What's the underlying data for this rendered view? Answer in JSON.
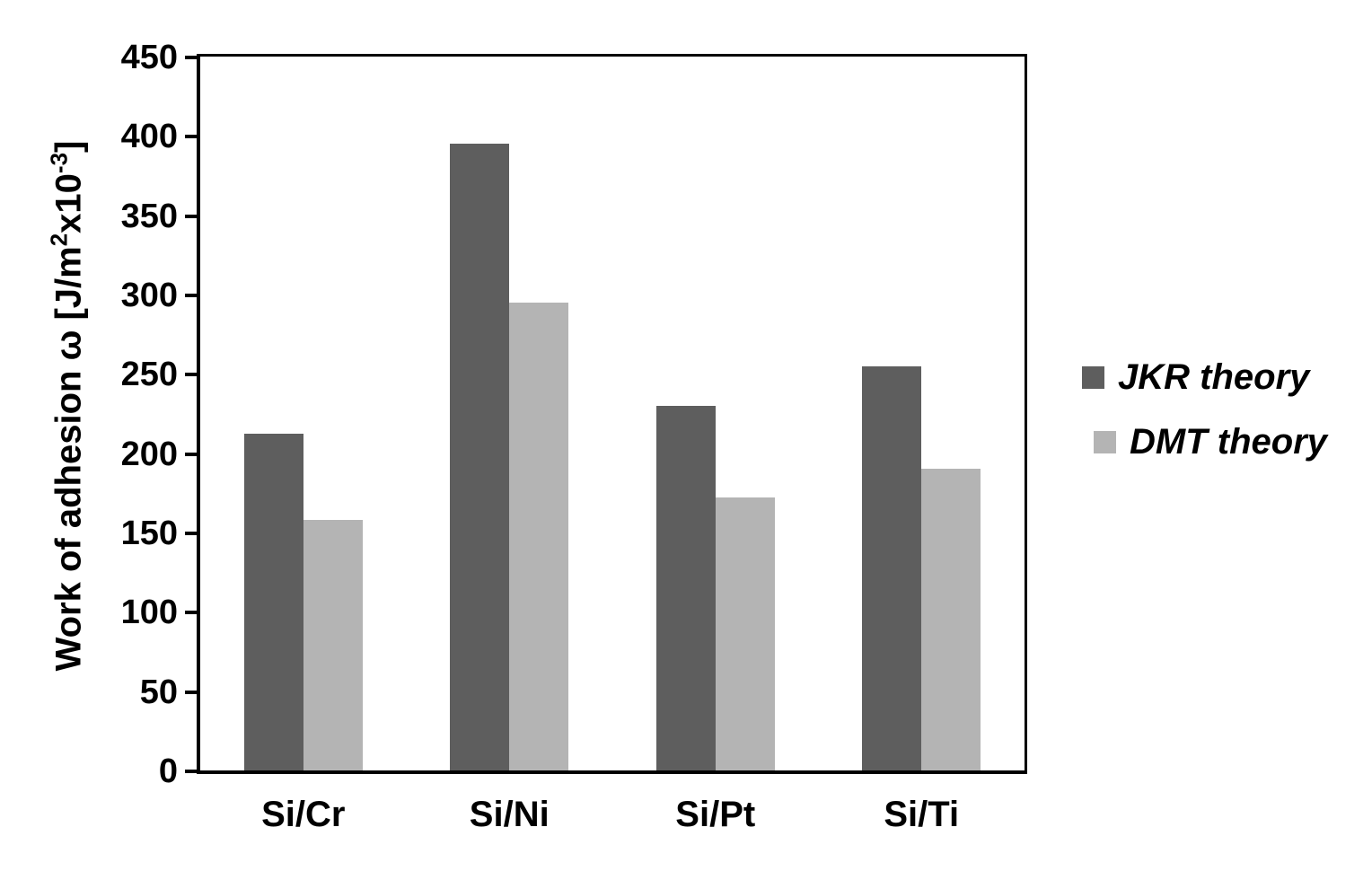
{
  "chart_data": {
    "type": "bar",
    "title": "",
    "categories": [
      "Si/Cr",
      "Si/Ni",
      "Si/Pt",
      "Si/Ti"
    ],
    "series": [
      {
        "name": "JKR theory",
        "color": "#5e5e5e",
        "values": [
          212,
          395,
          230,
          255
        ]
      },
      {
        "name": "DMT theory",
        "color": "#b4b4b4",
        "values": [
          158,
          295,
          172,
          190
        ]
      }
    ],
    "xlabel": "",
    "ylabel": "Work of adhesion ω [J/m²x10⁻³]",
    "ylabel_parts": {
      "prefix": "Work of adhesion ω [J/m",
      "sup1": "2",
      "mid": "x10",
      "sup2": "-3",
      "suffix": "]"
    },
    "ylim": [
      0,
      450
    ],
    "ytick_step": 50,
    "yticks": [
      0,
      50,
      100,
      150,
      200,
      250,
      300,
      350,
      400,
      450
    ],
    "grid": false,
    "legend_position": "right"
  },
  "colors": {
    "background": "#ffffff",
    "axis": "#000000",
    "text": "#000000",
    "series_dark": "#5e5e5e",
    "series_light": "#b4b4b4"
  }
}
